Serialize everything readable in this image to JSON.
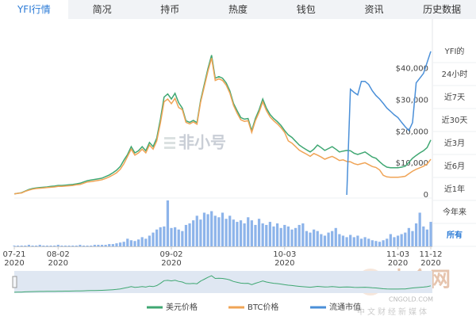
{
  "tabs": [
    {
      "label": "YFI行情",
      "active": true
    },
    {
      "label": "简况",
      "active": false
    },
    {
      "label": "持币",
      "active": false
    },
    {
      "label": "热度",
      "active": false
    },
    {
      "label": "钱包",
      "active": false
    },
    {
      "label": "资讯",
      "active": false
    },
    {
      "label": "历史数据",
      "active": false
    }
  ],
  "range_buttons": [
    {
      "label": "YFI的",
      "active": false
    },
    {
      "label": "24小时",
      "active": false
    },
    {
      "label": "近7天",
      "active": false
    },
    {
      "label": "近30天",
      "active": false
    },
    {
      "label": "近3月",
      "active": false
    },
    {
      "label": "近6月",
      "active": false
    },
    {
      "label": "近1年",
      "active": false
    },
    {
      "label": "今年来",
      "active": false
    },
    {
      "label": "所有",
      "active": true
    }
  ],
  "chart_data": {
    "type": "line",
    "categories": [
      "07-21",
      null,
      null,
      null,
      null,
      null,
      null,
      null,
      null,
      null,
      null,
      null,
      "08-02",
      null,
      null,
      null,
      null,
      null,
      null,
      null,
      null,
      null,
      null,
      null,
      null,
      null,
      null,
      null,
      null,
      null,
      null,
      null,
      null,
      null,
      null,
      null,
      null,
      null,
      null,
      null,
      null,
      null,
      null,
      "09-02",
      null,
      null,
      null,
      null,
      null,
      null,
      null,
      null,
      null,
      null,
      null,
      null,
      null,
      null,
      null,
      null,
      null,
      null,
      null,
      null,
      null,
      null,
      null,
      null,
      null,
      null,
      null,
      null,
      null,
      null,
      "10-03",
      null,
      null,
      null,
      null,
      null,
      null,
      null,
      null,
      null,
      null,
      null,
      null,
      null,
      null,
      null,
      null,
      null,
      null,
      null,
      null,
      null,
      null,
      null,
      null,
      null,
      null,
      null,
      null,
      null,
      null,
      "11-03",
      null,
      null,
      null,
      null,
      null,
      null,
      null,
      null,
      "11-12"
    ],
    "category_years": [
      "2020",
      null,
      null,
      null,
      null,
      null,
      null,
      null,
      null,
      null,
      null,
      null,
      "2020",
      null,
      null,
      null,
      null,
      null,
      null,
      null,
      null,
      null,
      null,
      null,
      null,
      null,
      null,
      null,
      null,
      null,
      null,
      null,
      null,
      null,
      null,
      null,
      null,
      null,
      null,
      null,
      null,
      null,
      null,
      "2020",
      null,
      null,
      null,
      null,
      null,
      null,
      null,
      null,
      null,
      null,
      null,
      null,
      null,
      null,
      null,
      null,
      null,
      null,
      null,
      null,
      null,
      null,
      null,
      null,
      null,
      null,
      null,
      null,
      null,
      null,
      "2020",
      null,
      null,
      null,
      null,
      null,
      null,
      null,
      null,
      null,
      null,
      null,
      null,
      null,
      null,
      null,
      null,
      null,
      null,
      null,
      null,
      null,
      null,
      null,
      null,
      null,
      null,
      null,
      null,
      null,
      null,
      "2020",
      null,
      null,
      null,
      null,
      null,
      null,
      null,
      null,
      "2020"
    ],
    "series": [
      {
        "name": "美元价格",
        "color": "#3fa772",
        "values": [
          300,
          500,
          700,
          1200,
          1700,
          2000,
          2200,
          2300,
          2400,
          2500,
          2700,
          2800,
          3000,
          3000,
          3100,
          3200,
          3300,
          3500,
          3700,
          4100,
          4500,
          4700,
          4900,
          5100,
          5300,
          5800,
          6300,
          7000,
          7800,
          9000,
          11000,
          12800,
          15300,
          13300,
          14000,
          15300,
          14000,
          16600,
          15300,
          18000,
          24000,
          31000,
          32000,
          30400,
          32200,
          29200,
          27500,
          23500,
          23000,
          23600,
          22900,
          30000,
          35000,
          40000,
          44300,
          37000,
          37500,
          37000,
          35500,
          33000,
          29000,
          26700,
          24500,
          24000,
          24200,
          20400,
          24200,
          27000,
          30400,
          27500,
          25500,
          24200,
          23200,
          22000,
          20400,
          19000,
          18200,
          17000,
          15800,
          15000,
          14300,
          13600,
          14500,
          15800,
          15000,
          14100,
          14700,
          15300,
          14500,
          13600,
          13900,
          14100,
          14000,
          13200,
          12800,
          13200,
          13600,
          12800,
          12000,
          11600,
          10500,
          9500,
          8800,
          8600,
          8600,
          8600,
          8800,
          9100,
          10300,
          11600,
          12500,
          13300,
          14000,
          15000,
          17400
        ]
      },
      {
        "name": "BTC价格",
        "color": "#f0a456",
        "values": [
          300,
          500,
          600,
          1100,
          1500,
          1800,
          2000,
          2100,
          2200,
          2300,
          2400,
          2500,
          2700,
          2700,
          2800,
          2900,
          3000,
          3200,
          3300,
          3700,
          4100,
          4200,
          4400,
          4600,
          4800,
          5200,
          5700,
          6300,
          7000,
          8100,
          9900,
          12200,
          14500,
          12600,
          13300,
          14500,
          13300,
          15800,
          14500,
          17100,
          22800,
          29500,
          30400,
          28900,
          30600,
          27700,
          27000,
          23000,
          22500,
          23100,
          22400,
          29400,
          34300,
          39200,
          43400,
          36300,
          36800,
          36300,
          34800,
          32300,
          28400,
          25900,
          23800,
          23300,
          23500,
          19800,
          23500,
          26200,
          29500,
          26700,
          24700,
          23500,
          22500,
          21300,
          19800,
          17100,
          16400,
          15300,
          14200,
          13500,
          12900,
          12200,
          13100,
          12600,
          12000,
          11300,
          11800,
          12200,
          11600,
          10900,
          11100,
          10600,
          10500,
          9900,
          9600,
          9900,
          10200,
          9600,
          9000,
          8700,
          7900,
          6200,
          5700,
          5600,
          5600,
          5600,
          5700,
          5900,
          6700,
          7500,
          8100,
          8600,
          9100,
          9800,
          11300
        ]
      },
      {
        "name": "流通市值",
        "color": "#4a8fd8",
        "values": [
          null,
          null,
          null,
          null,
          null,
          null,
          null,
          null,
          null,
          null,
          null,
          null,
          null,
          null,
          null,
          null,
          null,
          null,
          null,
          null,
          null,
          null,
          null,
          null,
          null,
          null,
          null,
          null,
          null,
          null,
          null,
          null,
          null,
          null,
          null,
          null,
          null,
          null,
          null,
          null,
          null,
          null,
          null,
          null,
          null,
          null,
          null,
          null,
          null,
          null,
          null,
          null,
          null,
          null,
          null,
          null,
          null,
          null,
          null,
          null,
          null,
          null,
          null,
          null,
          null,
          null,
          null,
          null,
          null,
          null,
          null,
          null,
          null,
          null,
          null,
          null,
          null,
          null,
          null,
          null,
          null,
          null,
          null,
          null,
          null,
          null,
          null,
          null,
          null,
          null,
          null,
          0,
          33500,
          32500,
          31700,
          36000,
          36000,
          35000,
          33000,
          31500,
          30400,
          29000,
          27500,
          26500,
          25400,
          24500,
          23000,
          21600,
          20400,
          22900,
          35500,
          37000,
          38500,
          42000,
          45500
        ]
      }
    ],
    "ylim": [
      0,
      55000
    ],
    "yticks": [
      0,
      {
        "value": 10000,
        "label": "$10,000"
      },
      {
        "value": 20000,
        "label": "$20,000"
      },
      {
        "value": 30000,
        "label": "$30,000"
      },
      {
        "value": 40000,
        "label": "$40,000"
      }
    ],
    "volume": {
      "color": "#8db4ea",
      "ylim": [
        0,
        60
      ],
      "values": [
        1,
        1,
        1,
        1,
        2,
        1,
        1,
        2,
        1,
        1,
        1,
        1,
        2,
        1,
        1,
        1,
        1,
        1,
        2,
        1,
        1,
        1,
        2,
        2,
        2,
        2,
        3,
        3,
        4,
        5,
        6,
        10,
        8,
        7,
        9,
        12,
        10,
        14,
        18,
        22,
        25,
        26,
        60,
        24,
        25,
        22,
        20,
        28,
        30,
        34,
        40,
        35,
        44,
        42,
        46,
        40,
        38,
        44,
        36,
        40,
        35,
        32,
        34,
        30,
        38,
        34,
        28,
        36,
        30,
        28,
        32,
        26,
        30,
        24,
        28,
        26,
        22,
        24,
        28,
        30,
        20,
        18,
        22,
        20,
        16,
        14,
        18,
        20,
        24,
        16,
        14,
        12,
        15,
        12,
        14,
        10,
        12,
        10,
        8,
        7,
        6,
        8,
        10,
        16,
        12,
        14,
        16,
        18,
        24,
        20,
        30,
        44,
        26,
        22,
        32
      ]
    },
    "legend": "bottom"
  },
  "watermarks": {
    "main": "非小号",
    "brand": "中金网",
    "site": "CNGOLD.COM",
    "slogan": "中文财经新媒体"
  }
}
